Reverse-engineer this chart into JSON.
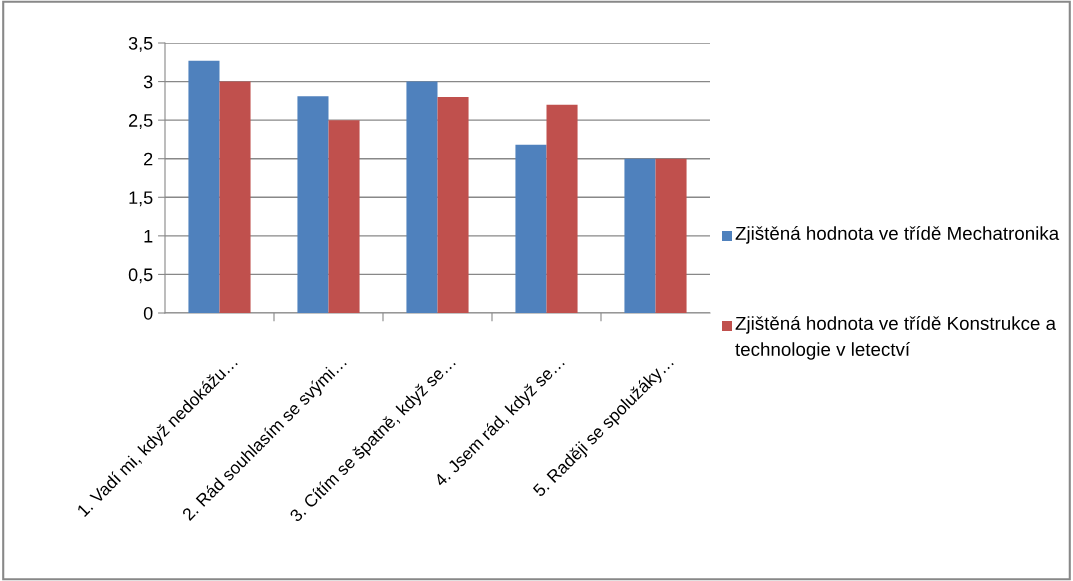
{
  "chart_data": {
    "type": "bar",
    "categories": [
      "1. Vadí mi, když nedokážu…",
      "2. Rád souhlasím se svými…",
      "3. Cítím se špatně, když se…",
      "4. Jsem rád, když se…",
      "5. Raději se spolužáky…"
    ],
    "series": [
      {
        "name": "Zjištěná hodnota ve třídě Mechatronika",
        "color": "#4f81bd",
        "values": [
          3.27,
          2.81,
          3.0,
          2.18,
          2.0
        ]
      },
      {
        "name": "Zjištěná hodnota ve třídě Konstrukce a technologie v letectví",
        "color": "#c0504d",
        "values": [
          3.0,
          2.5,
          2.8,
          2.7,
          2.0
        ]
      }
    ],
    "ylim": [
      0,
      3.5
    ],
    "yticks": [
      0,
      {
        "value": 0.5,
        "label": "0,5"
      },
      1,
      {
        "value": 1.5,
        "label": "1,5"
      },
      2,
      {
        "value": 2.5,
        "label": "2,5"
      },
      3,
      {
        "value": 3.5,
        "label": "3,5"
      }
    ],
    "grid": "y",
    "legend": "right"
  }
}
